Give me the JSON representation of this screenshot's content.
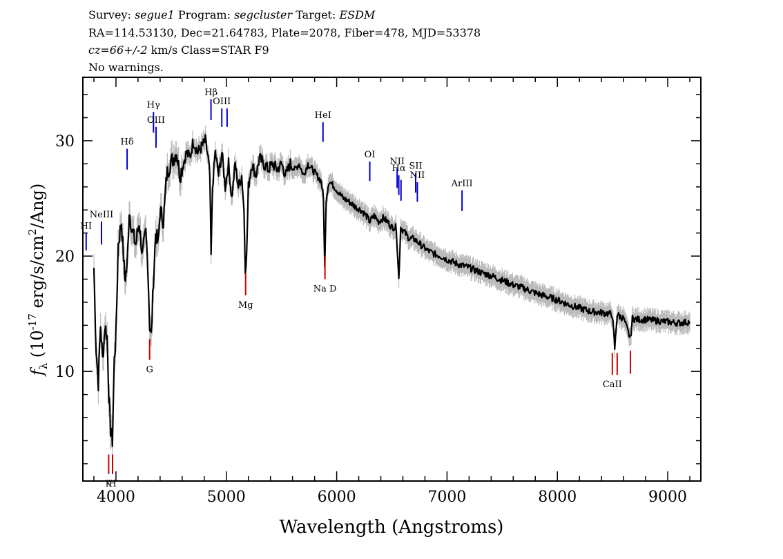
{
  "header": {
    "line1": {
      "survey_label": "Survey:",
      "survey": "segue1",
      "program_label": "Program:",
      "program": "segcluster",
      "target_label": "Target:",
      "target": "ESDM"
    },
    "line2": "RA=114.53130, Dec=21.64783, Plate=2078, Fiber=478, MJD=53378",
    "line3": {
      "cz": "cz=66+/-2",
      "rest": " km/s Class=STAR F9"
    },
    "line4": "No warnings."
  },
  "chart_data": {
    "type": "line",
    "title": "",
    "xlabel": "Wavelength (Angstroms)",
    "ylabel": "f_λ (10^-17 erg/s/cm^2/Ang)",
    "xlim": [
      3700,
      9300
    ],
    "ylim": [
      0.5,
      35.5
    ],
    "xticks": [
      4000,
      5000,
      6000,
      7000,
      8000,
      9000
    ],
    "yticks": [
      10,
      20,
      30
    ],
    "grid": false,
    "legend": "none",
    "colors": {
      "flux": "#000000",
      "error": "#bbbbbb",
      "emission": "#0000cc",
      "absorption": "#cc0000"
    },
    "series": [
      {
        "x": [
          3800,
          3820,
          3840,
          3860,
          3880,
          3900,
          3920,
          3935,
          3950,
          3968,
          3985,
          4000,
          4020,
          4050,
          4080,
          4101,
          4120,
          4150,
          4180,
          4210,
          4240,
          4270,
          4290,
          4305,
          4320,
          4340,
          4360,
          4383,
          4400,
          4430,
          4460,
          4490,
          4520,
          4550,
          4580,
          4610,
          4640,
          4670,
          4700,
          4740,
          4780,
          4810,
          4835,
          4850,
          4862,
          4875,
          4900,
          4930,
          4960,
          4990,
          5020,
          5050,
          5080,
          5110,
          5140,
          5160,
          5172,
          5184,
          5200,
          5230,
          5270,
          5300,
          5340,
          5380,
          5420,
          5460,
          5500,
          5540,
          5580,
          5620,
          5660,
          5700,
          5740,
          5780,
          5820,
          5860,
          5880,
          5892,
          5905,
          5930,
          5980,
          6020,
          6060,
          6100,
          6140,
          6180,
          6220,
          6260,
          6300,
          6340,
          6380,
          6420,
          6460,
          6500,
          6540,
          6563,
          6580,
          6620,
          6660,
          6700,
          6760,
          6820,
          6880,
          6940,
          7000,
          7100,
          7200,
          7300,
          7400,
          7500,
          7600,
          7700,
          7800,
          7900,
          8000,
          8100,
          8200,
          8300,
          8400,
          8480,
          8498,
          8520,
          8542,
          8560,
          8600,
          8662,
          8680,
          8720,
          8800,
          8900,
          9000,
          9100,
          9200
        ],
        "values": [
          19,
          12,
          9,
          14,
          11,
          14,
          13,
          8,
          5,
          4,
          11,
          13,
          21,
          23,
          18,
          19,
          24,
          22,
          21,
          23,
          20,
          22,
          19,
          14,
          13,
          18,
          22,
          21,
          24,
          23,
          27,
          28,
          28.5,
          29,
          27,
          28,
          29,
          28.5,
          30,
          29,
          29.5,
          30,
          28.5,
          27,
          20,
          26,
          29,
          27,
          29,
          26,
          28,
          25,
          28,
          26,
          27,
          24,
          19,
          20,
          26,
          28,
          27,
          28.5,
          28,
          27.5,
          28,
          27.5,
          28,
          27,
          28,
          27.5,
          28,
          27,
          28,
          27.5,
          27,
          26.5,
          25,
          19,
          25,
          26.5,
          26,
          25.5,
          25,
          24.8,
          24.5,
          24.2,
          24,
          23.6,
          23,
          23.5,
          23,
          23.3,
          23,
          22.5,
          22.5,
          18,
          22.5,
          22,
          21.5,
          21.5,
          21,
          20.5,
          20.2,
          20,
          19.7,
          19.3,
          19,
          18.6,
          18.3,
          17.9,
          17.5,
          17.2,
          16.8,
          16.5,
          16.2,
          15.8,
          15.5,
          15.2,
          15.1,
          15,
          14.9,
          12,
          15,
          14.8,
          14.6,
          12.8,
          14.6,
          14.5,
          14.5,
          14.4,
          14.3,
          14.2,
          14.3
        ]
      }
    ],
    "emission_lines": [
      {
        "label": "HI",
        "x": 3730,
        "y_top": 22,
        "y_bot": 20.5
      },
      {
        "label": "NeIII",
        "x": 3869,
        "y_top": 23,
        "y_bot": 21
      },
      {
        "label": "Hδ",
        "x": 4101,
        "y_top": 29.3,
        "y_bot": 27.5
      },
      {
        "label": "Hγ",
        "x": 4340,
        "y_top": 32.5,
        "y_bot": 30.7
      },
      {
        "label": "OIII",
        "x": 4363,
        "y_top": 31.2,
        "y_bot": 29.4
      },
      {
        "label": "Hβ",
        "x": 4861,
        "y_top": 33.6,
        "y_bot": 31.8
      },
      {
        "label": "OIII",
        "x": 4959,
        "y_top": 32.8,
        "y_bot": 31.2
      },
      {
        "label": "",
        "x": 5007,
        "y_top": 32.8,
        "y_bot": 31.2
      },
      {
        "label": "HeI",
        "x": 5876,
        "y_top": 31.6,
        "y_bot": 29.9
      },
      {
        "label": "OI",
        "x": 6300,
        "y_top": 28.2,
        "y_bot": 26.5
      },
      {
        "label": "NII",
        "x": 6548,
        "y_top": 27.6,
        "y_bot": 25.9
      },
      {
        "label": "Hα",
        "x": 6563,
        "y_top": 27,
        "y_bot": 25.3
      },
      {
        "label": "",
        "x": 6583,
        "y_top": 26.6,
        "y_bot": 24.8
      },
      {
        "label": "SII",
        "x": 6716,
        "y_top": 27.2,
        "y_bot": 25.5
      },
      {
        "label": "NII",
        "x": 6731,
        "y_top": 26.4,
        "y_bot": 24.7
      },
      {
        "label": "ArIII",
        "x": 7136,
        "y_top": 25.7,
        "y_bot": 23.9
      }
    ],
    "absorption_lines": [
      {
        "label": "K",
        "x": 3934,
        "y_top": 2.8,
        "y_bot": 1.1
      },
      {
        "label": "H",
        "x": 3969,
        "y_top": 2.8,
        "y_bot": 1.1
      },
      {
        "label": "G",
        "x": 4305,
        "y_top": 12.8,
        "y_bot": 11.0
      },
      {
        "label": "Mg",
        "x": 5175,
        "y_top": 18.5,
        "y_bot": 16.6
      },
      {
        "label": "Na D",
        "x": 5894,
        "y_top": 20.0,
        "y_bot": 18.0
      },
      {
        "label": "CaII",
        "x": 8498,
        "y_top": 11.6,
        "y_bot": 9.7
      },
      {
        "label": "",
        "x": 8542,
        "y_top": 11.6,
        "y_bot": 9.7
      },
      {
        "label": "",
        "x": 8662,
        "y_top": 11.8,
        "y_bot": 9.8
      }
    ]
  }
}
